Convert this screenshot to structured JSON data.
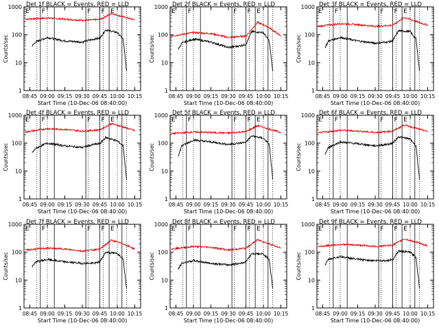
{
  "chart_data": {
    "type": "line",
    "ylabel": "Counts/sec",
    "xlabel": "Start Time (10-Dec-06 08:40:00)",
    "y_scale": "log",
    "ylim": [
      1,
      1000
    ],
    "y_ticks": [
      "1",
      "10",
      "100",
      "1000"
    ],
    "x_ticks": [
      "08:45",
      "09:00",
      "09:15",
      "09:30",
      "09:45",
      "10:00",
      "10:15"
    ],
    "xlim": [
      "08:40",
      "10:20"
    ],
    "colors": {
      "events": "#000000",
      "lld": "#e00000"
    },
    "markers": {
      "solid": [
        "08:54",
        "09:06",
        "09:33",
        "09:45",
        "09:53",
        "10:04"
      ],
      "dotted": [
        "08:51",
        "09:00",
        "09:35",
        "09:48",
        "10:00",
        "10:08"
      ],
      "labels": [
        {
          "time": "08:40",
          "text": "E"
        },
        {
          "time": "08:54",
          "text": "F"
        },
        {
          "time": "09:33",
          "text": "F"
        },
        {
          "time": "09:45",
          "text": "F"
        },
        {
          "time": "09:53",
          "text": "E"
        }
      ]
    },
    "panels": [
      {
        "title": "Det 1f BLACK = Events, RED = LLD",
        "events": {
          "times": [
            "08:47",
            "08:50",
            "09:00",
            "09:15",
            "09:30",
            "09:40",
            "09:45",
            "09:50",
            "10:00",
            "10:05",
            "10:08"
          ],
          "values": [
            40,
            55,
            80,
            60,
            55,
            70,
            75,
            150,
            120,
            70,
            5
          ]
        },
        "lld": {
          "times": [
            "08:41",
            "09:00",
            "09:15",
            "09:30",
            "09:45",
            "09:55",
            "10:05",
            "10:15"
          ],
          "values": [
            360,
            400,
            360,
            330,
            350,
            580,
            440,
            340
          ]
        }
      },
      {
        "title": "Det 2f BLACK = Events, RED = LLD",
        "events": {
          "times": [
            "08:47",
            "08:50",
            "09:00",
            "09:15",
            "09:30",
            "09:40",
            "09:45",
            "09:50",
            "10:00",
            "10:05",
            "10:08"
          ],
          "values": [
            30,
            50,
            70,
            55,
            35,
            40,
            45,
            130,
            120,
            60,
            5
          ]
        },
        "lld": {
          "times": [
            "08:41",
            "09:00",
            "09:15",
            "09:30",
            "09:45",
            "09:55",
            "10:05",
            "10:15"
          ],
          "values": [
            90,
            120,
            110,
            80,
            90,
            280,
            180,
            90
          ]
        }
      },
      {
        "title": "Det 3f BLACK = Events, RED = LLD",
        "events": {
          "times": [
            "08:47",
            "08:50",
            "09:00",
            "09:15",
            "09:30",
            "09:40",
            "09:45",
            "09:50",
            "10:00",
            "10:05",
            "10:08"
          ],
          "values": [
            35,
            60,
            80,
            60,
            50,
            55,
            60,
            140,
            130,
            70,
            5
          ]
        },
        "lld": {
          "times": [
            "08:41",
            "09:00",
            "09:15",
            "09:30",
            "09:45",
            "09:55",
            "10:05",
            "10:15"
          ],
          "values": [
            200,
            250,
            230,
            200,
            220,
            420,
            300,
            220
          ]
        }
      },
      {
        "title": "Det 4f BLACK = Events, RED = LLD",
        "events": {
          "times": [
            "08:47",
            "08:50",
            "09:00",
            "09:15",
            "09:30",
            "09:40",
            "09:45",
            "09:50",
            "10:00",
            "10:05",
            "10:08"
          ],
          "values": [
            45,
            65,
            100,
            80,
            70,
            90,
            95,
            160,
            120,
            80,
            5
          ]
        },
        "lld": {
          "times": [
            "08:41",
            "09:00",
            "09:15",
            "09:30",
            "09:45",
            "09:55",
            "10:05",
            "10:15"
          ],
          "values": [
            250,
            330,
            310,
            270,
            300,
            500,
            380,
            280
          ]
        }
      },
      {
        "title": "Det 5f BLACK = Events, RED = LLD",
        "events": {
          "times": [
            "08:47",
            "08:50",
            "09:00",
            "09:15",
            "09:30",
            "09:40",
            "09:45",
            "09:50",
            "10:00",
            "10:05",
            "10:08"
          ],
          "values": [
            35,
            80,
            130,
            110,
            90,
            100,
            110,
            180,
            150,
            90,
            5
          ]
        },
        "lld": {
          "times": [
            "08:41",
            "09:00",
            "09:15",
            "09:30",
            "09:45",
            "09:55",
            "10:05",
            "10:15"
          ],
          "values": [
            220,
            250,
            240,
            230,
            260,
            420,
            320,
            240
          ]
        }
      },
      {
        "title": "Det 6f BLACK = Events, RED = LLD",
        "events": {
          "times": [
            "08:47",
            "08:50",
            "09:00",
            "09:15",
            "09:30",
            "09:40",
            "09:45",
            "09:50",
            "10:00",
            "10:05",
            "10:08"
          ],
          "values": [
            40,
            70,
            110,
            95,
            80,
            90,
            100,
            170,
            140,
            80,
            5
          ]
        },
        "lld": {
          "times": [
            "08:41",
            "09:00",
            "09:15",
            "09:30",
            "09:45",
            "09:55",
            "10:05",
            "10:15"
          ],
          "values": [
            230,
            290,
            270,
            240,
            270,
            450,
            340,
            260
          ]
        }
      },
      {
        "title": "Det 7f BLACK = Events, RED = LLD",
        "events": {
          "times": [
            "08:47",
            "08:50",
            "09:00",
            "09:15",
            "09:30",
            "09:40",
            "09:45",
            "09:50",
            "10:00",
            "10:05",
            "10:08"
          ],
          "values": [
            30,
            45,
            55,
            45,
            40,
            40,
            45,
            100,
            90,
            60,
            5
          ]
        },
        "lld": {
          "times": [
            "08:41",
            "09:00",
            "09:15",
            "09:30",
            "09:45",
            "09:55",
            "10:05",
            "10:15"
          ],
          "values": [
            120,
            140,
            130,
            110,
            130,
            270,
            200,
            130
          ]
        }
      },
      {
        "title": "Det 8f BLACK = Events, RED = LLD",
        "events": {
          "times": [
            "08:47",
            "08:50",
            "09:00",
            "09:15",
            "09:30",
            "09:40",
            "09:45",
            "09:50",
            "10:00",
            "10:05",
            "10:08"
          ],
          "values": [
            25,
            40,
            50,
            40,
            35,
            40,
            45,
            90,
            85,
            55,
            5
          ]
        },
        "lld": {
          "times": [
            "08:41",
            "09:00",
            "09:15",
            "09:30",
            "09:45",
            "09:55",
            "10:05",
            "10:15"
          ],
          "values": [
            130,
            160,
            150,
            120,
            140,
            280,
            200,
            140
          ]
        }
      },
      {
        "title": "Det 9f BLACK = Events, RED = LLD",
        "events": {
          "times": [
            "08:47",
            "08:50",
            "09:00",
            "09:15",
            "09:30",
            "09:40",
            "09:45",
            "09:50",
            "10:00",
            "10:05",
            "10:08"
          ],
          "values": [
            35,
            55,
            70,
            55,
            50,
            50,
            55,
            110,
            100,
            65,
            5
          ]
        },
        "lld": {
          "times": [
            "08:41",
            "09:00",
            "09:15",
            "09:30",
            "09:45",
            "09:55",
            "10:05",
            "10:15"
          ],
          "values": [
            160,
            190,
            180,
            160,
            180,
            300,
            230,
            170
          ]
        }
      }
    ]
  }
}
